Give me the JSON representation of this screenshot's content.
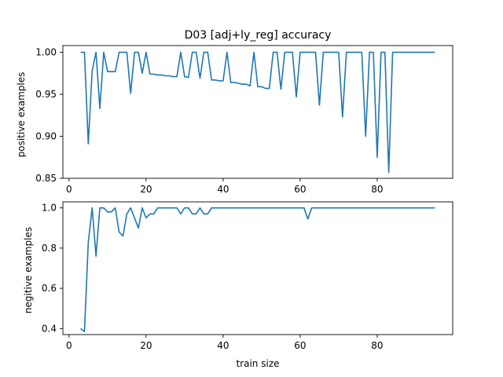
{
  "chart_data": [
    {
      "type": "line",
      "title": "D03 [adj+ly_reg] accuracy",
      "xlabel": "",
      "ylabel": "positive examples",
      "xlim": [
        -1.6,
        99.6
      ],
      "ylim": [
        0.85,
        1.008
      ],
      "xticks": [
        0,
        20,
        40,
        60,
        80
      ],
      "yticks": [
        0.85,
        0.9,
        0.95,
        1.0
      ],
      "ytick_labels": [
        "0.85",
        "0.90",
        "0.95",
        "1.00"
      ],
      "grid": false,
      "color": "#1f77b4",
      "series": [
        {
          "x": [
            3,
            4,
            5,
            6,
            7,
            8,
            9,
            10,
            11,
            12,
            13,
            14,
            15,
            16,
            17,
            18,
            19,
            20,
            21,
            22,
            23,
            24,
            25,
            26,
            27,
            28,
            29,
            30,
            31,
            32,
            33,
            34,
            35,
            36,
            37,
            38,
            39,
            40,
            41,
            42,
            43,
            44,
            45,
            46,
            47,
            48,
            49,
            50,
            51,
            52,
            53,
            54,
            55,
            56,
            57,
            58,
            59,
            60,
            61,
            62,
            63,
            64,
            65,
            66,
            67,
            68,
            69,
            70,
            71,
            72,
            73,
            74,
            75,
            76,
            77,
            78,
            79,
            80,
            81,
            82,
            83,
            84,
            85,
            86,
            87,
            88,
            89,
            90,
            91,
            92,
            93,
            94,
            95
          ],
          "y": [
            1.0,
            1.0,
            0.891,
            0.978,
            1.0,
            0.933,
            1.0,
            0.977,
            0.977,
            0.977,
            1.0,
            1.0,
            1.0,
            0.951,
            1.0,
            1.0,
            0.975,
            1.0,
            0.974,
            0.974,
            0.973,
            0.973,
            0.972,
            0.972,
            0.971,
            0.971,
            1.0,
            0.971,
            0.97,
            1.0,
            1.0,
            0.969,
            1.0,
            1.0,
            0.967,
            0.967,
            0.966,
            0.966,
            1.0,
            0.964,
            0.964,
            0.963,
            0.962,
            0.962,
            0.96,
            1.0,
            0.959,
            0.959,
            0.957,
            0.957,
            1.0,
            1.0,
            0.956,
            1.0,
            1.0,
            1.0,
            0.947,
            1.0,
            1.0,
            1.0,
            1.0,
            1.0,
            0.937,
            1.0,
            1.0,
            1.0,
            1.0,
            1.0,
            0.923,
            1.0,
            1.0,
            1.0,
            1.0,
            1.0,
            0.9,
            1.0,
            1.0,
            0.875,
            1.0,
            1.0,
            0.857,
            1.0,
            1.0,
            1.0,
            1.0,
            1.0,
            1.0,
            1.0,
            1.0,
            1.0,
            1.0,
            1.0,
            1.0
          ]
        }
      ]
    },
    {
      "type": "line",
      "title": "",
      "xlabel": "train size",
      "ylabel": "negitive examples",
      "xlim": [
        -1.6,
        99.6
      ],
      "ylim": [
        0.37,
        1.03
      ],
      "xticks": [
        0,
        20,
        40,
        60,
        80
      ],
      "yticks": [
        0.4,
        0.6,
        0.8,
        1.0
      ],
      "ytick_labels": [
        "0.4",
        "0.6",
        "0.8",
        "1.0"
      ],
      "grid": false,
      "color": "#1f77b4",
      "series": [
        {
          "x": [
            3,
            4,
            5,
            6,
            7,
            8,
            9,
            10,
            11,
            12,
            13,
            14,
            15,
            16,
            17,
            18,
            19,
            20,
            21,
            22,
            23,
            24,
            25,
            26,
            27,
            28,
            29,
            30,
            31,
            32,
            33,
            34,
            35,
            36,
            37,
            38,
            39,
            40,
            41,
            42,
            43,
            44,
            45,
            46,
            47,
            48,
            49,
            50,
            51,
            52,
            53,
            54,
            55,
            56,
            57,
            58,
            59,
            60,
            61,
            62,
            63,
            64,
            65,
            66,
            67,
            68,
            69,
            70,
            71,
            72,
            73,
            74,
            75,
            76,
            77,
            78,
            79,
            80,
            81,
            82,
            83,
            84,
            85,
            86,
            87,
            88,
            89,
            90,
            91,
            92,
            93,
            94,
            95
          ],
          "y": [
            0.4,
            0.385,
            0.83,
            1.0,
            0.76,
            1.0,
            1.0,
            0.98,
            0.98,
            1.0,
            0.88,
            0.86,
            0.97,
            1.0,
            0.95,
            0.9,
            1.0,
            0.95,
            0.97,
            0.97,
            1.0,
            1.0,
            1.0,
            1.0,
            1.0,
            1.0,
            0.97,
            1.0,
            1.0,
            0.97,
            0.97,
            1.0,
            0.97,
            0.97,
            1.0,
            1.0,
            1.0,
            1.0,
            1.0,
            1.0,
            1.0,
            1.0,
            1.0,
            1.0,
            1.0,
            1.0,
            1.0,
            1.0,
            1.0,
            1.0,
            1.0,
            1.0,
            1.0,
            1.0,
            1.0,
            1.0,
            1.0,
            1.0,
            1.0,
            0.945,
            1.0,
            1.0,
            1.0,
            1.0,
            1.0,
            1.0,
            1.0,
            1.0,
            1.0,
            1.0,
            1.0,
            1.0,
            1.0,
            1.0,
            1.0,
            1.0,
            1.0,
            1.0,
            1.0,
            1.0,
            1.0,
            1.0,
            1.0,
            1.0,
            1.0,
            1.0,
            1.0,
            1.0,
            1.0,
            1.0,
            1.0,
            1.0,
            1.0
          ]
        }
      ]
    }
  ]
}
